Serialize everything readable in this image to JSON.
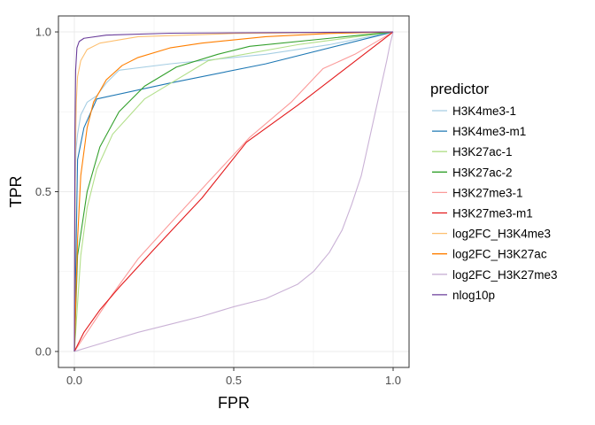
{
  "chart_data": {
    "type": "line",
    "title": "",
    "xlabel": "FPR",
    "ylabel": "TPR",
    "xlim": [
      0,
      1
    ],
    "ylim": [
      0,
      1
    ],
    "x_ticks": [
      "0.0",
      "0.5",
      "1.0"
    ],
    "y_ticks": [
      "0.0",
      "0.5",
      "1.0"
    ],
    "grid": true,
    "legend": {
      "title": "predictor",
      "position": "right"
    },
    "series": [
      {
        "name": "H3K4me3-1",
        "color": "#a6cee3",
        "points": [
          [
            0,
            0
          ],
          [
            0.002,
            0.5
          ],
          [
            0.005,
            0.63
          ],
          [
            0.01,
            0.68
          ],
          [
            0.02,
            0.74
          ],
          [
            0.04,
            0.78
          ],
          [
            0.07,
            0.8
          ],
          [
            0.1,
            0.84
          ],
          [
            0.14,
            0.88
          ],
          [
            0.3,
            0.9
          ],
          [
            0.6,
            0.93
          ],
          [
            0.8,
            0.96
          ],
          [
            1,
            1
          ]
        ]
      },
      {
        "name": "H3K4me3-m1",
        "color": "#1f78b4",
        "points": [
          [
            0,
            0
          ],
          [
            0.01,
            0.6
          ],
          [
            0.03,
            0.7
          ],
          [
            0.07,
            0.79
          ],
          [
            0.3,
            0.84
          ],
          [
            0.6,
            0.9
          ],
          [
            1,
            1
          ]
        ]
      },
      {
        "name": "H3K27ac-1",
        "color": "#b2df8a",
        "points": [
          [
            0,
            0
          ],
          [
            0.02,
            0.3
          ],
          [
            0.04,
            0.45
          ],
          [
            0.07,
            0.57
          ],
          [
            0.12,
            0.68
          ],
          [
            0.22,
            0.79
          ],
          [
            0.42,
            0.91
          ],
          [
            0.7,
            0.96
          ],
          [
            1,
            1
          ]
        ]
      },
      {
        "name": "H3K27ac-2",
        "color": "#33a02c",
        "points": [
          [
            0,
            0
          ],
          [
            0.01,
            0.3
          ],
          [
            0.04,
            0.5
          ],
          [
            0.08,
            0.64
          ],
          [
            0.14,
            0.75
          ],
          [
            0.22,
            0.83
          ],
          [
            0.32,
            0.89
          ],
          [
            0.45,
            0.93
          ],
          [
            0.55,
            0.955
          ],
          [
            0.8,
            0.98
          ],
          [
            1,
            1
          ]
        ]
      },
      {
        "name": "H3K27me3-1",
        "color": "#fb9a99",
        "points": [
          [
            0,
            0
          ],
          [
            0.02,
            0.03
          ],
          [
            0.06,
            0.09
          ],
          [
            0.12,
            0.18
          ],
          [
            0.2,
            0.29
          ],
          [
            0.3,
            0.4
          ],
          [
            0.42,
            0.53
          ],
          [
            0.55,
            0.67
          ],
          [
            0.68,
            0.78
          ],
          [
            0.78,
            0.885
          ],
          [
            0.88,
            0.93
          ],
          [
            1,
            1
          ]
        ]
      },
      {
        "name": "H3K27me3-m1",
        "color": "#e31a1c",
        "points": [
          [
            0,
            0
          ],
          [
            0.03,
            0.06
          ],
          [
            0.08,
            0.13
          ],
          [
            0.14,
            0.2
          ],
          [
            0.25,
            0.32
          ],
          [
            0.4,
            0.48
          ],
          [
            0.54,
            0.655
          ],
          [
            0.7,
            0.77
          ],
          [
            0.85,
            0.885
          ],
          [
            1,
            1
          ]
        ]
      },
      {
        "name": "log2FC_H3K4me3",
        "color": "#fdbf6f",
        "points": [
          [
            0,
            0
          ],
          [
            0.003,
            0.6
          ],
          [
            0.006,
            0.78
          ],
          [
            0.01,
            0.86
          ],
          [
            0.02,
            0.91
          ],
          [
            0.04,
            0.945
          ],
          [
            0.08,
            0.965
          ],
          [
            0.2,
            0.985
          ],
          [
            0.5,
            0.995
          ],
          [
            1,
            1
          ]
        ]
      },
      {
        "name": "log2FC_H3K27ac",
        "color": "#ff7f00",
        "points": [
          [
            0,
            0
          ],
          [
            0.01,
            0.35
          ],
          [
            0.02,
            0.55
          ],
          [
            0.04,
            0.7
          ],
          [
            0.06,
            0.78
          ],
          [
            0.1,
            0.85
          ],
          [
            0.15,
            0.895
          ],
          [
            0.2,
            0.92
          ],
          [
            0.3,
            0.95
          ],
          [
            0.4,
            0.965
          ],
          [
            0.6,
            0.985
          ],
          [
            0.8,
            0.995
          ],
          [
            1,
            1
          ]
        ]
      },
      {
        "name": "log2FC_H3K27me3",
        "color": "#cab2d6",
        "points": [
          [
            0,
            0
          ],
          [
            0.1,
            0.03
          ],
          [
            0.2,
            0.06
          ],
          [
            0.3,
            0.085
          ],
          [
            0.4,
            0.11
          ],
          [
            0.5,
            0.14
          ],
          [
            0.6,
            0.165
          ],
          [
            0.7,
            0.21
          ],
          [
            0.75,
            0.25
          ],
          [
            0.8,
            0.31
          ],
          [
            0.84,
            0.38
          ],
          [
            0.87,
            0.46
          ],
          [
            0.9,
            0.55
          ],
          [
            0.92,
            0.64
          ],
          [
            0.94,
            0.73
          ],
          [
            0.96,
            0.82
          ],
          [
            0.98,
            0.91
          ],
          [
            0.99,
            0.96
          ],
          [
            1,
            1
          ]
        ]
      },
      {
        "name": "nlog10p",
        "color": "#6a3d9a",
        "points": [
          [
            0,
            0
          ],
          [
            0.002,
            0.7
          ],
          [
            0.004,
            0.88
          ],
          [
            0.008,
            0.95
          ],
          [
            0.015,
            0.97
          ],
          [
            0.03,
            0.98
          ],
          [
            0.1,
            0.99
          ],
          [
            0.3,
            0.996
          ],
          [
            1,
            1
          ]
        ]
      }
    ]
  }
}
